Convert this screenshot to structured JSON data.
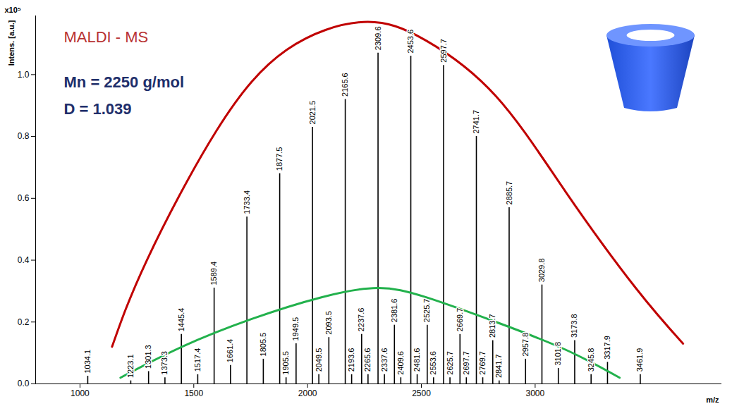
{
  "chart_data": {
    "type": "stem",
    "title": "MALDI - MS",
    "annotations": [
      "Mn = 2250 g/mol",
      "D = 1.039"
    ],
    "x_label": "m/z",
    "y_label": "Intens. [a.u.]",
    "y_multiplier": "x10⁵",
    "xlim": [
      805,
      3820
    ],
    "xticks": [
      1000,
      1500,
      2000,
      2500,
      3000
    ],
    "ylim": [
      0,
      1.19
    ],
    "yticks": [
      {
        "value": 0,
        "label": "0.0"
      },
      {
        "value": 0.2,
        "label": "0.2"
      },
      {
        "value": 0.4,
        "label": "0.4"
      },
      {
        "value": 0.6,
        "label": "0.6"
      },
      {
        "value": 0.8,
        "label": "0.8"
      },
      {
        "value": 1.0,
        "label": "1.0"
      }
    ],
    "grid": false,
    "series": [
      {
        "type": "stem",
        "color": "#000000",
        "data_labels": true,
        "x": [
          1034.1,
          1301.3,
          1445.4,
          1589.4,
          1733.4,
          1877.5,
          2021.5,
          2165.6,
          2309.6,
          2453.6,
          2597.7,
          2741.7,
          2885.7,
          3029.8,
          3173.8,
          3317.9,
          3461.9
        ],
        "values": [
          0.025,
          0.04,
          0.16,
          0.31,
          0.54,
          0.68,
          0.83,
          0.92,
          1.07,
          1.06,
          1.03,
          0.8,
          0.57,
          0.32,
          0.14,
          0.07,
          0.03
        ]
      },
      {
        "type": "stem",
        "color": "#000000",
        "data_labels": true,
        "x": [
          1223.1,
          1373.3,
          1517.4,
          1661.4,
          1805.5,
          1949.5,
          2093.5,
          2237.6,
          2381.6,
          2525.7,
          2669.7,
          2813.7,
          2957.8,
          3101.8,
          3245.8
        ],
        "values": [
          0.01,
          0.02,
          0.03,
          0.06,
          0.08,
          0.13,
          0.15,
          0.16,
          0.19,
          0.19,
          0.16,
          0.14,
          0.08,
          0.05,
          0.03
        ]
      },
      {
        "type": "stem",
        "color": "#000000",
        "data_labels": true,
        "x": [
          1905.5,
          2049.5,
          2193.6,
          2265.6,
          2337.6,
          2409.6,
          2481.6,
          2553.6,
          2625.7,
          2697.7,
          2769.7,
          2841.7
        ],
        "values": [
          0.02,
          0.03,
          0.03,
          0.03,
          0.03,
          0.02,
          0.03,
          0.02,
          0.02,
          0.02,
          0.02,
          0.01
        ]
      },
      {
        "type": "line",
        "color": "#c00000",
        "x": [
          1141,
          1294,
          1601,
          1908,
          2245,
          2521,
          2828,
          3135,
          3442,
          3650
        ],
        "values": [
          0.12,
          0.4,
          0.82,
          1.08,
          1.17,
          1.11,
          0.93,
          0.62,
          0.31,
          0.13
        ]
      },
      {
        "type": "line",
        "color": "#22b14c",
        "x": [
          1178,
          1448,
          1755,
          2061,
          2307,
          2521,
          2828,
          3135,
          3371
        ],
        "values": [
          0.02,
          0.12,
          0.21,
          0.28,
          0.31,
          0.28,
          0.2,
          0.11,
          0.02
        ]
      }
    ]
  }
}
